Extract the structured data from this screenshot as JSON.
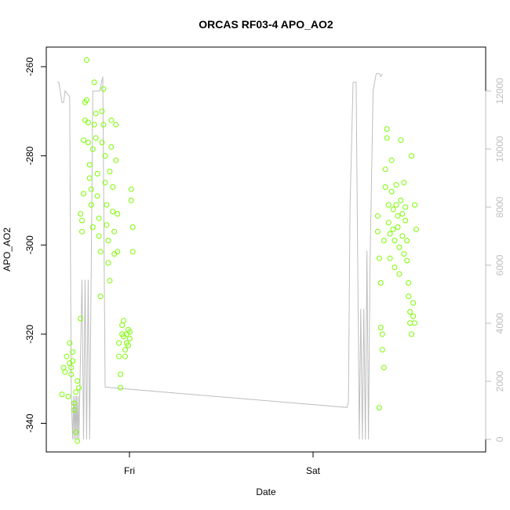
{
  "chart_data": {
    "type": "scatter",
    "title": "ORCAS RF03-4 APO_AO2",
    "xlabel": "Date",
    "ylabel": "APO_AO2",
    "x_ticks": [
      "Fri",
      "Sat"
    ],
    "left_axis": {
      "ticks": [
        -340,
        -320,
        -300,
        -280,
        -260
      ],
      "range": [
        -346,
        -258
      ]
    },
    "right_axis": {
      "ticks": [
        0,
        2000,
        4000,
        6000,
        8000,
        10000,
        12000
      ],
      "range": [
        -120,
        12900
      ],
      "color": "#bebebe"
    },
    "grid": false,
    "colors": {
      "points": "#7cfc00",
      "line": "#bebebe",
      "axis": "#000000"
    },
    "points": [
      {
        "x": 0.0,
        "y": -333.5
      },
      {
        "x": 0.01,
        "y": -327.5
      },
      {
        "x": 0.02,
        "y": -328.5
      },
      {
        "x": 0.03,
        "y": -325.0
      },
      {
        "x": 0.04,
        "y": -334.0
      },
      {
        "x": 0.05,
        "y": -322.0
      },
      {
        "x": 0.05,
        "y": -326.5
      },
      {
        "x": 0.06,
        "y": -327.5
      },
      {
        "x": 0.06,
        "y": -329.0
      },
      {
        "x": 0.07,
        "y": -324.0
      },
      {
        "x": 0.07,
        "y": -326.0
      },
      {
        "x": 0.08,
        "y": -335.5
      },
      {
        "x": 0.08,
        "y": -337.0
      },
      {
        "x": 0.09,
        "y": -333.0
      },
      {
        "x": 0.09,
        "y": -342.0
      },
      {
        "x": 0.1,
        "y": -344.0
      },
      {
        "x": 0.1,
        "y": -330.5
      },
      {
        "x": 0.11,
        "y": -332.0
      },
      {
        "x": 0.12,
        "y": -316.5
      },
      {
        "x": 0.12,
        "y": -293.0
      },
      {
        "x": 0.13,
        "y": -294.5
      },
      {
        "x": 0.13,
        "y": -297.0
      },
      {
        "x": 0.14,
        "y": -288.5
      },
      {
        "x": 0.14,
        "y": -276.5
      },
      {
        "x": 0.15,
        "y": -272.0
      },
      {
        "x": 0.15,
        "y": -268.0
      },
      {
        "x": 0.16,
        "y": -267.5
      },
      {
        "x": 0.16,
        "y": -258.5
      },
      {
        "x": 0.17,
        "y": -272.5
      },
      {
        "x": 0.17,
        "y": -277.0
      },
      {
        "x": 0.18,
        "y": -282.0
      },
      {
        "x": 0.18,
        "y": -285.0
      },
      {
        "x": 0.19,
        "y": -287.5
      },
      {
        "x": 0.19,
        "y": -291.0
      },
      {
        "x": 0.2,
        "y": -296.0
      },
      {
        "x": 0.2,
        "y": -278.5
      },
      {
        "x": 0.21,
        "y": -273.0
      },
      {
        "x": 0.21,
        "y": -263.5
      },
      {
        "x": 0.22,
        "y": -270.5
      },
      {
        "x": 0.22,
        "y": -276.0
      },
      {
        "x": 0.23,
        "y": -284.0
      },
      {
        "x": 0.23,
        "y": -289.0
      },
      {
        "x": 0.24,
        "y": -294.0
      },
      {
        "x": 0.24,
        "y": -298.0
      },
      {
        "x": 0.25,
        "y": -301.5
      },
      {
        "x": 0.25,
        "y": -311.5
      },
      {
        "x": 0.26,
        "y": -277.0
      },
      {
        "x": 0.26,
        "y": -270.0
      },
      {
        "x": 0.27,
        "y": -265.0
      },
      {
        "x": 0.27,
        "y": -273.0
      },
      {
        "x": 0.28,
        "y": -280.0
      },
      {
        "x": 0.28,
        "y": -286.0
      },
      {
        "x": 0.29,
        "y": -291.0
      },
      {
        "x": 0.29,
        "y": -295.5
      },
      {
        "x": 0.3,
        "y": -299.0
      },
      {
        "x": 0.3,
        "y": -304.0
      },
      {
        "x": 0.31,
        "y": -308.0
      },
      {
        "x": 0.31,
        "y": -283.5
      },
      {
        "x": 0.32,
        "y": -278.0
      },
      {
        "x": 0.32,
        "y": -272.0
      },
      {
        "x": 0.33,
        "y": -287.0
      },
      {
        "x": 0.33,
        "y": -292.5
      },
      {
        "x": 0.34,
        "y": -297.0
      },
      {
        "x": 0.34,
        "y": -302.0
      },
      {
        "x": 0.35,
        "y": -281.0
      },
      {
        "x": 0.35,
        "y": -273.0
      },
      {
        "x": 0.36,
        "y": -293.0
      },
      {
        "x": 0.36,
        "y": -301.5
      },
      {
        "x": 0.37,
        "y": -322.0
      },
      {
        "x": 0.37,
        "y": -325.0
      },
      {
        "x": 0.38,
        "y": -329.0
      },
      {
        "x": 0.38,
        "y": -332.0
      },
      {
        "x": 0.39,
        "y": -318.0
      },
      {
        "x": 0.39,
        "y": -320.0
      },
      {
        "x": 0.4,
        "y": -317.0
      },
      {
        "x": 0.4,
        "y": -320.5
      },
      {
        "x": 0.41,
        "y": -323.5
      },
      {
        "x": 0.41,
        "y": -325.0
      },
      {
        "x": 0.42,
        "y": -322.0
      },
      {
        "x": 0.42,
        "y": -320.0
      },
      {
        "x": 0.43,
        "y": -319.0
      },
      {
        "x": 0.43,
        "y": -322.5
      },
      {
        "x": 0.44,
        "y": -321.0
      },
      {
        "x": 0.44,
        "y": -319.5
      },
      {
        "x": 0.45,
        "y": -287.5
      },
      {
        "x": 0.45,
        "y": -290.0
      },
      {
        "x": 0.46,
        "y": -296.0
      },
      {
        "x": 0.46,
        "y": -301.5
      },
      {
        "x": 2.05,
        "y": -293.5
      },
      {
        "x": 2.05,
        "y": -297.0
      },
      {
        "x": 2.06,
        "y": -303.0
      },
      {
        "x": 2.06,
        "y": -336.5
      },
      {
        "x": 2.07,
        "y": -308.5
      },
      {
        "x": 2.07,
        "y": -318.5
      },
      {
        "x": 2.08,
        "y": -320.0
      },
      {
        "x": 2.08,
        "y": -323.5
      },
      {
        "x": 2.09,
        "y": -327.5
      },
      {
        "x": 2.09,
        "y": -299.0
      },
      {
        "x": 2.1,
        "y": -287.0
      },
      {
        "x": 2.1,
        "y": -283.0
      },
      {
        "x": 2.11,
        "y": -274.0
      },
      {
        "x": 2.11,
        "y": -276.0
      },
      {
        "x": 2.12,
        "y": -291.0
      },
      {
        "x": 2.12,
        "y": -295.0
      },
      {
        "x": 2.13,
        "y": -297.5
      },
      {
        "x": 2.13,
        "y": -303.0
      },
      {
        "x": 2.14,
        "y": -288.0
      },
      {
        "x": 2.14,
        "y": -281.0
      },
      {
        "x": 2.15,
        "y": -292.0
      },
      {
        "x": 2.15,
        "y": -296.5
      },
      {
        "x": 2.16,
        "y": -305.0
      },
      {
        "x": 2.16,
        "y": -299.0
      },
      {
        "x": 2.17,
        "y": -286.5
      },
      {
        "x": 2.17,
        "y": -291.0
      },
      {
        "x": 2.18,
        "y": -293.5
      },
      {
        "x": 2.18,
        "y": -296.0
      },
      {
        "x": 2.19,
        "y": -300.5
      },
      {
        "x": 2.19,
        "y": -306.5
      },
      {
        "x": 2.2,
        "y": -276.5
      },
      {
        "x": 2.2,
        "y": -290.0
      },
      {
        "x": 2.21,
        "y": -293.0
      },
      {
        "x": 2.21,
        "y": -298.0
      },
      {
        "x": 2.22,
        "y": -302.0
      },
      {
        "x": 2.22,
        "y": -286.0
      },
      {
        "x": 2.23,
        "y": -294.5
      },
      {
        "x": 2.23,
        "y": -291.5
      },
      {
        "x": 2.24,
        "y": -299.0
      },
      {
        "x": 2.24,
        "y": -303.5
      },
      {
        "x": 2.25,
        "y": -311.5
      },
      {
        "x": 2.25,
        "y": -308.5
      },
      {
        "x": 2.26,
        "y": -315.0
      },
      {
        "x": 2.26,
        "y": -317.5
      },
      {
        "x": 2.27,
        "y": -320.0
      },
      {
        "x": 2.27,
        "y": -280.0
      },
      {
        "x": 2.28,
        "y": -313.0
      },
      {
        "x": 2.28,
        "y": -316.0
      },
      {
        "x": 2.29,
        "y": -317.5
      },
      {
        "x": 2.29,
        "y": -291.0
      },
      {
        "x": 2.3,
        "y": -296.5
      }
    ],
    "right_series": [
      {
        "x": -0.03,
        "y": 12300
      },
      {
        "x": -0.02,
        "y": 12300
      },
      {
        "x": 0.0,
        "y": 11600
      },
      {
        "x": 0.01,
        "y": 11600
      },
      {
        "x": 0.02,
        "y": 12000
      },
      {
        "x": 0.05,
        "y": 11800
      },
      {
        "x": 0.06,
        "y": 1500
      },
      {
        "x": 0.07,
        "y": 0
      },
      {
        "x": 0.075,
        "y": 1500
      },
      {
        "x": 0.08,
        "y": 0
      },
      {
        "x": 0.085,
        "y": 1500
      },
      {
        "x": 0.09,
        "y": 0
      },
      {
        "x": 0.095,
        "y": 1500
      },
      {
        "x": 0.1,
        "y": 0
      },
      {
        "x": 0.105,
        "y": 1500
      },
      {
        "x": 0.11,
        "y": 0
      },
      {
        "x": 0.115,
        "y": 1500
      },
      {
        "x": 0.13,
        "y": 5500
      },
      {
        "x": 0.14,
        "y": 0
      },
      {
        "x": 0.15,
        "y": 5500
      },
      {
        "x": 0.16,
        "y": 0
      },
      {
        "x": 0.17,
        "y": 5500
      },
      {
        "x": 0.18,
        "y": 0
      },
      {
        "x": 0.2,
        "y": 12000
      },
      {
        "x": 0.21,
        "y": 12000
      },
      {
        "x": 0.245,
        "y": 12000
      },
      {
        "x": 0.265,
        "y": 12500
      },
      {
        "x": 0.28,
        "y": 1800
      },
      {
        "x": 1.85,
        "y": 1100
      },
      {
        "x": 1.86,
        "y": 1300
      },
      {
        "x": 1.87,
        "y": 8000
      },
      {
        "x": 1.89,
        "y": 12300
      },
      {
        "x": 1.91,
        "y": 12300
      },
      {
        "x": 1.93,
        "y": 0
      },
      {
        "x": 1.94,
        "y": 4500
      },
      {
        "x": 1.95,
        "y": 0
      },
      {
        "x": 1.96,
        "y": 4500
      },
      {
        "x": 1.97,
        "y": 0
      },
      {
        "x": 1.98,
        "y": 6500
      },
      {
        "x": 1.99,
        "y": 0
      },
      {
        "x": 2.0,
        "y": 6000
      },
      {
        "x": 2.02,
        "y": 12000
      },
      {
        "x": 2.04,
        "y": 12600
      },
      {
        "x": 2.06,
        "y": 12600
      },
      {
        "x": 2.07,
        "y": 12500
      },
      {
        "x": 2.08,
        "y": 12600
      }
    ]
  }
}
